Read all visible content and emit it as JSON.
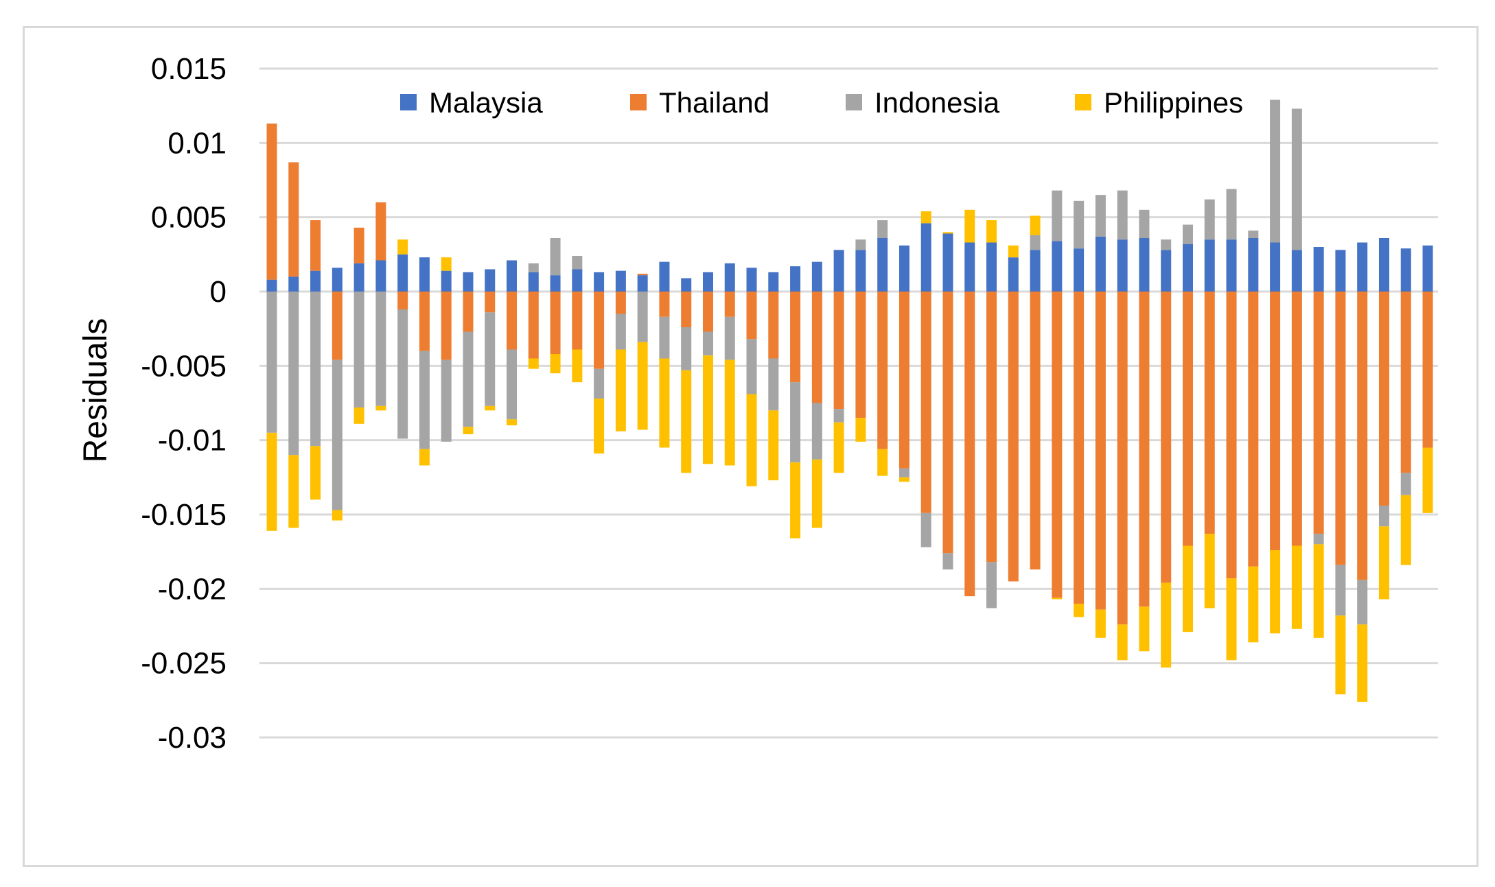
{
  "chart_data": {
    "type": "bar",
    "stacked": true,
    "title": "",
    "xlabel": "",
    "ylabel": "Residuals",
    "ylim": [
      -0.03,
      0.015
    ],
    "yticks": [
      0.015,
      0.01,
      0.005,
      0,
      -0.005,
      -0.01,
      -0.015,
      -0.02,
      -0.025,
      -0.03
    ],
    "ytick_labels": [
      "0.015",
      "0.01",
      "0.005",
      "0",
      "-0.005",
      "-0.01",
      "-0.015",
      "-0.02",
      "-0.025",
      "-0.03"
    ],
    "grid": true,
    "legend_position": "top-center",
    "series": [
      {
        "name": "Malaysia",
        "color": "#4472C4",
        "values": [
          0.0008,
          0.001,
          0.0014,
          0.0016,
          0.0019,
          0.0021,
          0.0025,
          0.0023,
          0.0014,
          0.0013,
          0.0015,
          0.0021,
          0.0013,
          0.0011,
          0.0015,
          0.0013,
          0.0014,
          0.0011,
          0.002,
          0.0009,
          0.0013,
          0.0019,
          0.0016,
          0.0013,
          0.0017,
          0.002,
          0.0028,
          0.0028,
          0.0036,
          0.0031,
          0.0046,
          0.0039,
          0.0033,
          0.0033,
          0.0023,
          0.0028,
          0.0034,
          0.0029,
          0.0037,
          0.0035,
          0.0036,
          0.0028,
          0.0032,
          0.0035,
          0.0035,
          0.0036,
          0.0033,
          0.0028,
          0.003,
          0.0028,
          0.0033,
          0.0036,
          0.0029,
          0.0031
        ]
      },
      {
        "name": "Thailand",
        "color": "#ED7D31",
        "values": [
          0.0105,
          0.0077,
          0.0034,
          -0.0046,
          0.0024,
          0.0039,
          -0.0012,
          -0.004,
          -0.0046,
          -0.0027,
          -0.0014,
          -0.0039,
          -0.0045,
          -0.0042,
          -0.0039,
          -0.0052,
          -0.0015,
          0.0001,
          -0.0017,
          -0.0024,
          -0.0027,
          -0.0017,
          -0.0032,
          -0.0045,
          -0.0061,
          -0.0075,
          -0.0079,
          -0.0085,
          -0.0106,
          -0.0119,
          -0.0149,
          -0.0176,
          -0.0205,
          -0.0182,
          -0.0195,
          -0.0187,
          -0.0206,
          -0.021,
          -0.0214,
          -0.0224,
          -0.0212,
          -0.0196,
          -0.0171,
          -0.0163,
          -0.0193,
          -0.0185,
          -0.0174,
          -0.0171,
          -0.0163,
          -0.0184,
          -0.0194,
          -0.0144,
          -0.0122,
          -0.0105
        ]
      },
      {
        "name": "Indonesia",
        "color": "#A5A5A5",
        "values": [
          -0.0095,
          -0.011,
          -0.0104,
          -0.0101,
          -0.0078,
          -0.0077,
          -0.0087,
          -0.0066,
          -0.0055,
          -0.0064,
          -0.0063,
          -0.0047,
          0.0006,
          0.0025,
          0.0009,
          -0.002,
          -0.0024,
          -0.0034,
          -0.0028,
          -0.0029,
          -0.0016,
          -0.0029,
          -0.0037,
          -0.0035,
          -0.0054,
          -0.0038,
          -0.0009,
          0.0007,
          0.0012,
          -0.0006,
          -0.0023,
          -0.0011,
          0.0,
          -0.0031,
          0.0,
          0.001,
          0.0034,
          0.0032,
          0.0028,
          0.0033,
          0.0019,
          0.0007,
          0.0013,
          0.0027,
          0.0034,
          0.0005,
          0.0096,
          0.0095,
          -0.0007,
          -0.0034,
          -0.003,
          -0.0014,
          -0.0015,
          0.0
        ]
      },
      {
        "name": "Philippines",
        "color": "#FFC000",
        "values": [
          -0.0066,
          -0.0049,
          -0.0036,
          -0.0007,
          -0.0011,
          -0.0003,
          0.001,
          -0.0011,
          0.0009,
          -0.0005,
          -0.0003,
          -0.0004,
          -0.0007,
          -0.0013,
          -0.0022,
          -0.0037,
          -0.0055,
          -0.0059,
          -0.006,
          -0.0069,
          -0.0073,
          -0.0071,
          -0.0062,
          -0.0047,
          -0.0051,
          -0.0046,
          -0.0034,
          -0.0016,
          -0.0018,
          -0.0003,
          0.0008,
          0.0001,
          0.0022,
          0.0015,
          0.0008,
          0.0013,
          -0.0001,
          -0.0009,
          -0.0019,
          -0.0024,
          -0.003,
          -0.0057,
          -0.0058,
          -0.005,
          -0.0055,
          -0.0051,
          -0.0056,
          -0.0056,
          -0.0063,
          -0.0053,
          -0.0052,
          -0.0049,
          -0.0047,
          -0.0044
        ]
      }
    ]
  }
}
